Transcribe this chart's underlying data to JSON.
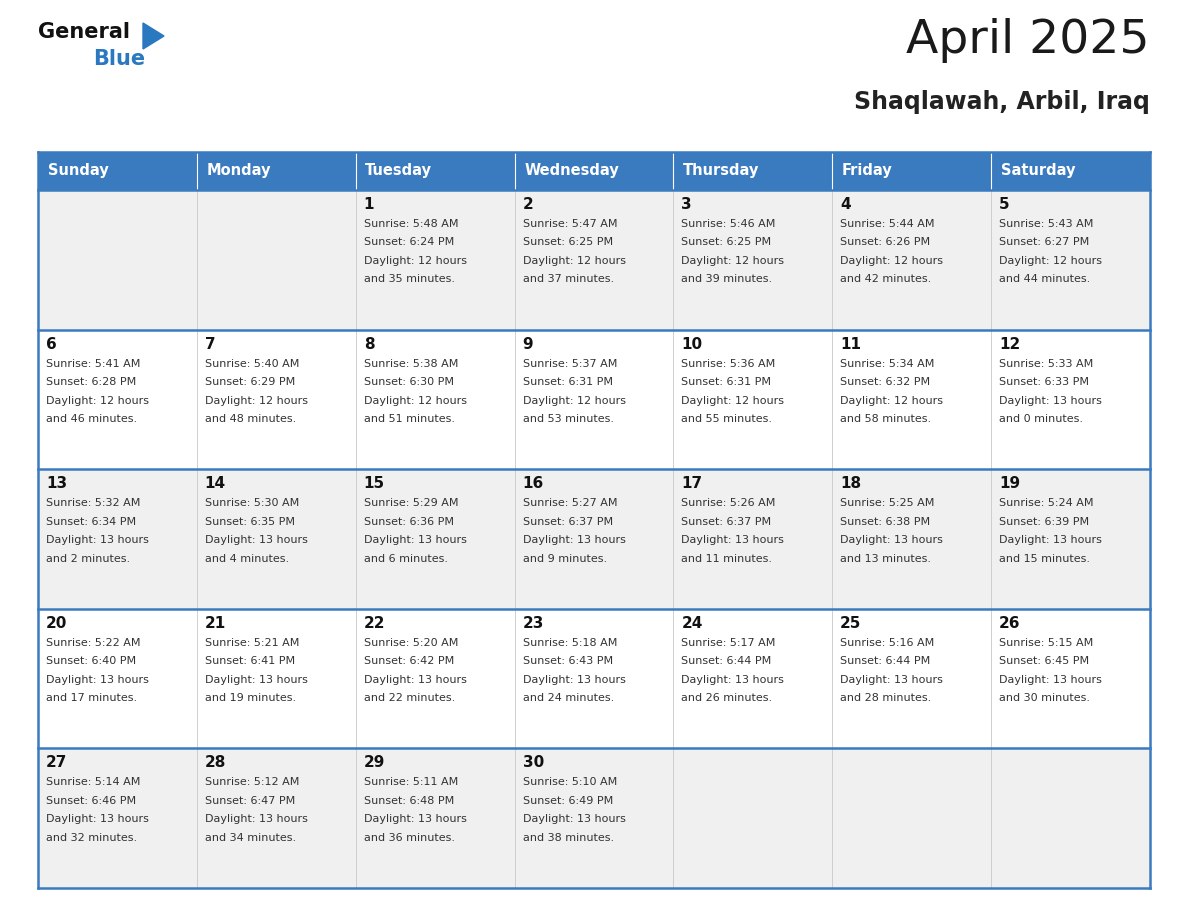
{
  "title": "April 2025",
  "subtitle": "Shaqlawah, Arbil, Iraq",
  "days_of_week": [
    "Sunday",
    "Monday",
    "Tuesday",
    "Wednesday",
    "Thursday",
    "Friday",
    "Saturday"
  ],
  "header_bg": "#3a7abf",
  "header_text": "#ffffff",
  "cell_bg_odd": "#f0f0f0",
  "cell_bg_even": "#ffffff",
  "cell_border_light": "#c8c8c8",
  "row_separator_color": "#3a7abf",
  "title_color": "#1a1a1a",
  "subtitle_color": "#222222",
  "text_color": "#333333",
  "day_num_color": "#111111",
  "logo_general_color": "#111111",
  "logo_blue_color": "#2a78bf",
  "logo_triangle_color": "#2a78bf",
  "calendar": [
    [
      {
        "day": null,
        "sunrise": null,
        "sunset": null,
        "daylight_line1": null,
        "daylight_line2": null
      },
      {
        "day": null,
        "sunrise": null,
        "sunset": null,
        "daylight_line1": null,
        "daylight_line2": null
      },
      {
        "day": "1",
        "sunrise": "5:48 AM",
        "sunset": "6:24 PM",
        "daylight_line1": "Daylight: 12 hours",
        "daylight_line2": "and 35 minutes."
      },
      {
        "day": "2",
        "sunrise": "5:47 AM",
        "sunset": "6:25 PM",
        "daylight_line1": "Daylight: 12 hours",
        "daylight_line2": "and 37 minutes."
      },
      {
        "day": "3",
        "sunrise": "5:46 AM",
        "sunset": "6:25 PM",
        "daylight_line1": "Daylight: 12 hours",
        "daylight_line2": "and 39 minutes."
      },
      {
        "day": "4",
        "sunrise": "5:44 AM",
        "sunset": "6:26 PM",
        "daylight_line1": "Daylight: 12 hours",
        "daylight_line2": "and 42 minutes."
      },
      {
        "day": "5",
        "sunrise": "5:43 AM",
        "sunset": "6:27 PM",
        "daylight_line1": "Daylight: 12 hours",
        "daylight_line2": "and 44 minutes."
      }
    ],
    [
      {
        "day": "6",
        "sunrise": "5:41 AM",
        "sunset": "6:28 PM",
        "daylight_line1": "Daylight: 12 hours",
        "daylight_line2": "and 46 minutes."
      },
      {
        "day": "7",
        "sunrise": "5:40 AM",
        "sunset": "6:29 PM",
        "daylight_line1": "Daylight: 12 hours",
        "daylight_line2": "and 48 minutes."
      },
      {
        "day": "8",
        "sunrise": "5:38 AM",
        "sunset": "6:30 PM",
        "daylight_line1": "Daylight: 12 hours",
        "daylight_line2": "and 51 minutes."
      },
      {
        "day": "9",
        "sunrise": "5:37 AM",
        "sunset": "6:31 PM",
        "daylight_line1": "Daylight: 12 hours",
        "daylight_line2": "and 53 minutes."
      },
      {
        "day": "10",
        "sunrise": "5:36 AM",
        "sunset": "6:31 PM",
        "daylight_line1": "Daylight: 12 hours",
        "daylight_line2": "and 55 minutes."
      },
      {
        "day": "11",
        "sunrise": "5:34 AM",
        "sunset": "6:32 PM",
        "daylight_line1": "Daylight: 12 hours",
        "daylight_line2": "and 58 minutes."
      },
      {
        "day": "12",
        "sunrise": "5:33 AM",
        "sunset": "6:33 PM",
        "daylight_line1": "Daylight: 13 hours",
        "daylight_line2": "and 0 minutes."
      }
    ],
    [
      {
        "day": "13",
        "sunrise": "5:32 AM",
        "sunset": "6:34 PM",
        "daylight_line1": "Daylight: 13 hours",
        "daylight_line2": "and 2 minutes."
      },
      {
        "day": "14",
        "sunrise": "5:30 AM",
        "sunset": "6:35 PM",
        "daylight_line1": "Daylight: 13 hours",
        "daylight_line2": "and 4 minutes."
      },
      {
        "day": "15",
        "sunrise": "5:29 AM",
        "sunset": "6:36 PM",
        "daylight_line1": "Daylight: 13 hours",
        "daylight_line2": "and 6 minutes."
      },
      {
        "day": "16",
        "sunrise": "5:27 AM",
        "sunset": "6:37 PM",
        "daylight_line1": "Daylight: 13 hours",
        "daylight_line2": "and 9 minutes."
      },
      {
        "day": "17",
        "sunrise": "5:26 AM",
        "sunset": "6:37 PM",
        "daylight_line1": "Daylight: 13 hours",
        "daylight_line2": "and 11 minutes."
      },
      {
        "day": "18",
        "sunrise": "5:25 AM",
        "sunset": "6:38 PM",
        "daylight_line1": "Daylight: 13 hours",
        "daylight_line2": "and 13 minutes."
      },
      {
        "day": "19",
        "sunrise": "5:24 AM",
        "sunset": "6:39 PM",
        "daylight_line1": "Daylight: 13 hours",
        "daylight_line2": "and 15 minutes."
      }
    ],
    [
      {
        "day": "20",
        "sunrise": "5:22 AM",
        "sunset": "6:40 PM",
        "daylight_line1": "Daylight: 13 hours",
        "daylight_line2": "and 17 minutes."
      },
      {
        "day": "21",
        "sunrise": "5:21 AM",
        "sunset": "6:41 PM",
        "daylight_line1": "Daylight: 13 hours",
        "daylight_line2": "and 19 minutes."
      },
      {
        "day": "22",
        "sunrise": "5:20 AM",
        "sunset": "6:42 PM",
        "daylight_line1": "Daylight: 13 hours",
        "daylight_line2": "and 22 minutes."
      },
      {
        "day": "23",
        "sunrise": "5:18 AM",
        "sunset": "6:43 PM",
        "daylight_line1": "Daylight: 13 hours",
        "daylight_line2": "and 24 minutes."
      },
      {
        "day": "24",
        "sunrise": "5:17 AM",
        "sunset": "6:44 PM",
        "daylight_line1": "Daylight: 13 hours",
        "daylight_line2": "and 26 minutes."
      },
      {
        "day": "25",
        "sunrise": "5:16 AM",
        "sunset": "6:44 PM",
        "daylight_line1": "Daylight: 13 hours",
        "daylight_line2": "and 28 minutes."
      },
      {
        "day": "26",
        "sunrise": "5:15 AM",
        "sunset": "6:45 PM",
        "daylight_line1": "Daylight: 13 hours",
        "daylight_line2": "and 30 minutes."
      }
    ],
    [
      {
        "day": "27",
        "sunrise": "5:14 AM",
        "sunset": "6:46 PM",
        "daylight_line1": "Daylight: 13 hours",
        "daylight_line2": "and 32 minutes."
      },
      {
        "day": "28",
        "sunrise": "5:12 AM",
        "sunset": "6:47 PM",
        "daylight_line1": "Daylight: 13 hours",
        "daylight_line2": "and 34 minutes."
      },
      {
        "day": "29",
        "sunrise": "5:11 AM",
        "sunset": "6:48 PM",
        "daylight_line1": "Daylight: 13 hours",
        "daylight_line2": "and 36 minutes."
      },
      {
        "day": "30",
        "sunrise": "5:10 AM",
        "sunset": "6:49 PM",
        "daylight_line1": "Daylight: 13 hours",
        "daylight_line2": "and 38 minutes."
      },
      {
        "day": null,
        "sunrise": null,
        "sunset": null,
        "daylight_line1": null,
        "daylight_line2": null
      },
      {
        "day": null,
        "sunrise": null,
        "sunset": null,
        "daylight_line1": null,
        "daylight_line2": null
      },
      {
        "day": null,
        "sunrise": null,
        "sunset": null,
        "daylight_line1": null,
        "daylight_line2": null
      }
    ]
  ]
}
